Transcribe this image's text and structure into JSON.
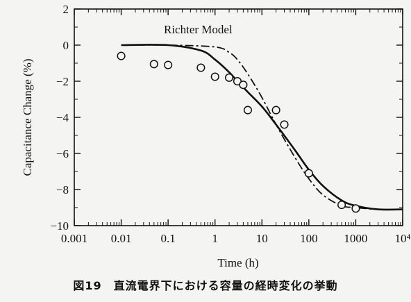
{
  "chart_data": {
    "type": "line",
    "title": "",
    "annotation": "Richter Model",
    "xlabel": "Time (h)",
    "ylabel": "Capacitance Change (%)",
    "x_scale": "log",
    "xlim": [
      0.001,
      10000
    ],
    "ylim": [
      -10,
      2
    ],
    "x_ticks": [
      0.001,
      0.01,
      0.1,
      1,
      10,
      100,
      1000,
      10000
    ],
    "x_tick_labels": [
      "0.001",
      "0.01",
      "0.1",
      "1",
      "10",
      "100",
      "1000",
      "10⁴"
    ],
    "y_ticks": [
      2,
      0,
      -2,
      -4,
      -6,
      -8,
      -10
    ],
    "y_tick_labels": [
      "2",
      "0",
      "−2",
      "−4",
      "−6",
      "−8",
      "−10"
    ],
    "grid": false,
    "series": [
      {
        "style": "solid",
        "x": [
          0.01,
          0.1,
          0.5,
          1,
          2,
          3,
          5,
          10,
          20,
          50,
          100,
          200,
          500,
          1000,
          3000,
          10000
        ],
        "y": [
          0,
          0,
          -0.3,
          -0.8,
          -1.5,
          -2.0,
          -2.6,
          -3.4,
          -4.4,
          -5.8,
          -6.9,
          -7.8,
          -8.6,
          -8.9,
          -9.1,
          -9.1
        ]
      },
      {
        "style": "dash-dot",
        "x": [
          0.01,
          0.1,
          1,
          2,
          3,
          5,
          10,
          20,
          50,
          100,
          200,
          500,
          1000,
          3000,
          10000
        ],
        "y": [
          0,
          0,
          -0.1,
          -0.4,
          -0.8,
          -1.6,
          -2.9,
          -4.4,
          -6.2,
          -7.4,
          -8.3,
          -8.9,
          -9.0,
          -9.1,
          -9.1
        ]
      },
      {
        "style": "markers",
        "x": [
          0.01,
          0.05,
          0.1,
          0.5,
          1,
          2,
          3,
          4,
          5,
          20,
          30,
          100,
          500,
          1000
        ],
        "y": [
          -0.6,
          -1.05,
          -1.1,
          -1.25,
          -1.75,
          -1.8,
          -2.0,
          -2.2,
          -3.6,
          -3.6,
          -4.4,
          -7.1,
          -8.85,
          -9.05
        ]
      }
    ]
  },
  "caption": "図19　直流電界下における容量の経時変化の挙動"
}
